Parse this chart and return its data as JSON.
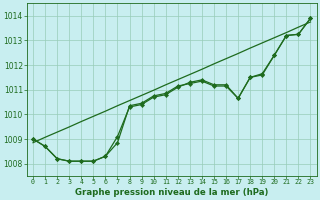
{
  "background_color": "#c8eef0",
  "grid_color": "#98ccb8",
  "line_color": "#1e6b1e",
  "xlim": [
    -0.5,
    23.5
  ],
  "ylim": [
    1007.5,
    1014.5
  ],
  "yticks": [
    1008,
    1009,
    1010,
    1011,
    1012,
    1013,
    1014
  ],
  "xticks": [
    0,
    1,
    2,
    3,
    4,
    5,
    6,
    7,
    8,
    9,
    10,
    11,
    12,
    13,
    14,
    15,
    16,
    17,
    18,
    19,
    20,
    21,
    22,
    23
  ],
  "xlabel": "Graphe pression niveau de la mer (hPa)",
  "hours": [
    0,
    1,
    2,
    3,
    4,
    5,
    6,
    7,
    8,
    9,
    10,
    11,
    12,
    13,
    14,
    15,
    16,
    17,
    18,
    19,
    20,
    21,
    22,
    23
  ],
  "smooth_line": [
    1008.85,
    1009.07,
    1009.28,
    1009.49,
    1009.71,
    1009.92,
    1010.13,
    1010.35,
    1010.56,
    1010.77,
    1010.98,
    1011.2,
    1011.41,
    1011.62,
    1011.83,
    1012.05,
    1012.26,
    1012.47,
    1012.69,
    1012.9,
    1013.11,
    1013.32,
    1013.54,
    1013.75
  ],
  "line_upper": [
    1009.0,
    1008.7,
    1008.2,
    1008.1,
    1008.1,
    1008.1,
    1008.3,
    1008.85,
    1010.35,
    1010.45,
    1010.75,
    1010.85,
    1011.15,
    1011.25,
    1011.35,
    1011.15,
    1011.15,
    1010.65,
    1011.5,
    1011.65,
    1012.4,
    1013.2,
    1013.25,
    1013.9
  ],
  "line_lower": [
    1009.0,
    1008.7,
    1008.2,
    1008.1,
    1008.1,
    1008.1,
    1008.3,
    1009.1,
    1010.3,
    1010.4,
    1010.7,
    1010.8,
    1011.1,
    1011.3,
    1011.4,
    1011.2,
    1011.2,
    1010.65,
    1011.5,
    1011.6,
    1012.4,
    1013.2,
    1013.25,
    1013.9
  ]
}
